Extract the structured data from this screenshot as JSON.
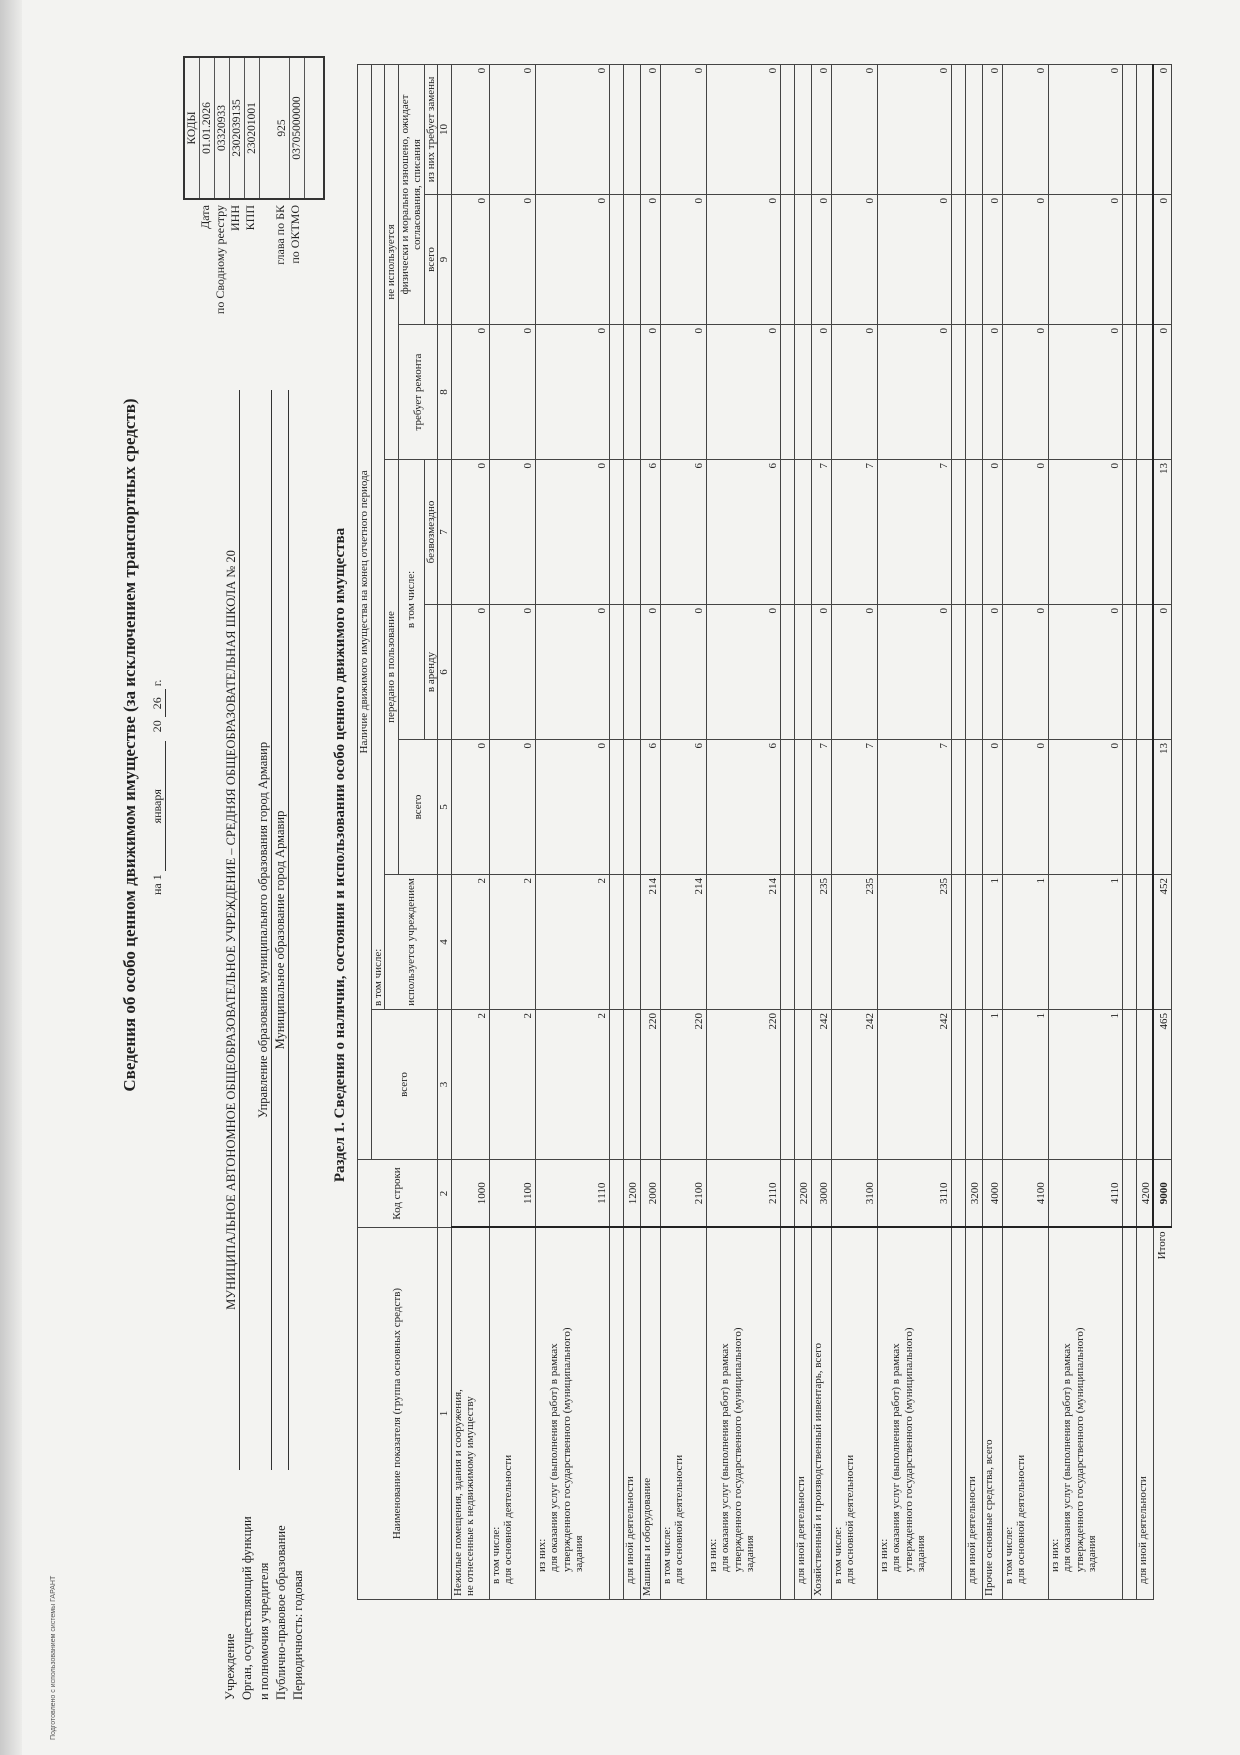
{
  "garant_note": "Подготовлено с использованием системы ГАРАНТ",
  "title": "Сведения об особо ценном движимом имуществе (за исключением транспортных средств)",
  "date": {
    "prefix": "на 1",
    "month": "января",
    "year_prefix": "20",
    "year": "26",
    "suffix": "г."
  },
  "left_labels": [
    "Учреждение",
    "Орган, осуществляющий функции",
    "и полномочия учредителя",
    "Публично-правовое образование",
    "Периодичность: годовая"
  ],
  "institution": "МУНИЦИПАЛЬНОЕ АВТОНОМНОЕ ОБЩЕОБРАЗОВАТЕЛЬНОЕ УЧРЕЖДЕНИЕ – СРЕДНЯЯ ОБЩЕОБРАЗОВАТЕЛЬНАЯ ШКОЛА № 20",
  "founder": "Управление образования муниципального образования город Армавир",
  "public_entity": "Муниципальное образование город Армавир",
  "codes": {
    "header": "КОДЫ",
    "labels": {
      "date": "Дата",
      "registry": "по Сводному реестру",
      "inn": "ИНН",
      "kpp": "КПП",
      "bk": "глава по БК",
      "oktmo": "по ОКТМО"
    },
    "date": "01.01.2026",
    "registry": "03320933",
    "inn": "2302039135",
    "kpp": "230201001",
    "bk": "925",
    "oktmo": "03705000000"
  },
  "section_title": "Раздел 1. Сведения о наличии, состоянии и использовании особо ценного движимого имущества",
  "table": {
    "headers": {
      "name": "Наименование показателя (группа основных средств)",
      "code": "Код строки",
      "availability": "Наличие движимого имущества на конец отчетного периода",
      "total": "всего",
      "including": "в том числе:",
      "used": "используется учреждением",
      "transferred": "передано в пользование",
      "not_used": "не используется",
      "transferred_total": "всего",
      "transferred_including": "в том числе:",
      "needs_repair": "требует ремонта",
      "worn_out": "физически и морально изношено, ожидает согласования, списания",
      "rent": "в аренду",
      "free": "безвозмездно",
      "worn_total": "всего",
      "needs_replacement": "из них требует замены"
    },
    "column_numbers": [
      "1",
      "2",
      "3",
      "4",
      "5",
      "6",
      "7",
      "8",
      "9",
      "10"
    ],
    "rows": [
      {
        "name": [
          "Нежилые помещения, здания и сооружения,",
          "не отнесенные к недвижимому имуществу"
        ],
        "code": "1000",
        "values": [
          "2",
          "2",
          "0",
          "0",
          "0",
          "0",
          "0",
          "0"
        ]
      },
      {
        "name": [
          "в том числе:",
          "для основной деятельности"
        ],
        "code": "1100",
        "values": [
          "2",
          "2",
          "0",
          "0",
          "0",
          "0",
          "0",
          "0"
        ]
      },
      {
        "name": [
          "из них:",
          "для оказания услуг (выполнения работ) в рамках",
          "утвержденного государственного (муниципального)",
          "задания"
        ],
        "code": "1110",
        "values": [
          "2",
          "2",
          "0",
          "0",
          "0",
          "0",
          "0",
          "0"
        ]
      },
      {
        "name": [],
        "code": "",
        "values": []
      },
      {
        "name": [
          "для иной деятельности"
        ],
        "code": "1200",
        "values": []
      },
      {
        "name": [
          "Машины и оборудование"
        ],
        "code": "2000",
        "values": [
          "220",
          "214",
          "6",
          "0",
          "6",
          "0",
          "0",
          "0"
        ]
      },
      {
        "name": [
          "в том числе:",
          "для основной деятельности"
        ],
        "code": "2100",
        "values": [
          "220",
          "214",
          "6",
          "0",
          "6",
          "0",
          "0",
          "0"
        ]
      },
      {
        "name": [
          "из них:",
          "для оказания услуг (выполнения работ) в рамках",
          "утвержденного государственного (муниципального)",
          "задания"
        ],
        "code": "2110",
        "values": [
          "220",
          "214",
          "6",
          "0",
          "6",
          "0",
          "0",
          "0"
        ]
      },
      {
        "name": [],
        "code": "",
        "values": []
      },
      {
        "name": [
          "для иной деятельности"
        ],
        "code": "2200",
        "values": []
      },
      {
        "name": [
          "Хозяйственный и производственный инвентарь, всего"
        ],
        "code": "3000",
        "values": [
          "242",
          "235",
          "7",
          "0",
          "7",
          "0",
          "0",
          "0"
        ]
      },
      {
        "name": [
          "в том числе:",
          "для основной деятельности"
        ],
        "code": "3100",
        "values": [
          "242",
          "235",
          "7",
          "0",
          "7",
          "0",
          "0",
          "0"
        ]
      },
      {
        "name": [
          "из них:",
          "для оказания услуг (выполнения работ) в рамках",
          "утвержденного государственного (муниципального)",
          "задания"
        ],
        "code": "3110",
        "values": [
          "242",
          "235",
          "7",
          "0",
          "7",
          "0",
          "0",
          "0"
        ]
      },
      {
        "name": [],
        "code": "",
        "values": []
      },
      {
        "name": [
          "для иной деятельности"
        ],
        "code": "3200",
        "values": []
      },
      {
        "name": [
          "Прочие основные средства, всего"
        ],
        "code": "4000",
        "values": [
          "1",
          "1",
          "0",
          "0",
          "0",
          "0",
          "0",
          "0"
        ]
      },
      {
        "name": [
          "в том числе:",
          "для основной деятельности"
        ],
        "code": "4100",
        "values": [
          "1",
          "1",
          "0",
          "0",
          "0",
          "0",
          "0",
          "0"
        ]
      },
      {
        "name": [
          "из них:",
          "для оказания услуг (выполнения работ) в рамках",
          "утвержденного государственного (муниципального)",
          "задания"
        ],
        "code": "4110",
        "values": [
          "1",
          "1",
          "0",
          "0",
          "0",
          "0",
          "0",
          "0"
        ]
      },
      {
        "name": [],
        "code": "",
        "values": []
      },
      {
        "name": [
          "для иной деятельности"
        ],
        "code": "4200",
        "values": []
      }
    ],
    "total": {
      "label": "Итого",
      "code": "9000",
      "values": [
        "465",
        "452",
        "13",
        "0",
        "13",
        "0",
        "0",
        "0"
      ]
    }
  }
}
